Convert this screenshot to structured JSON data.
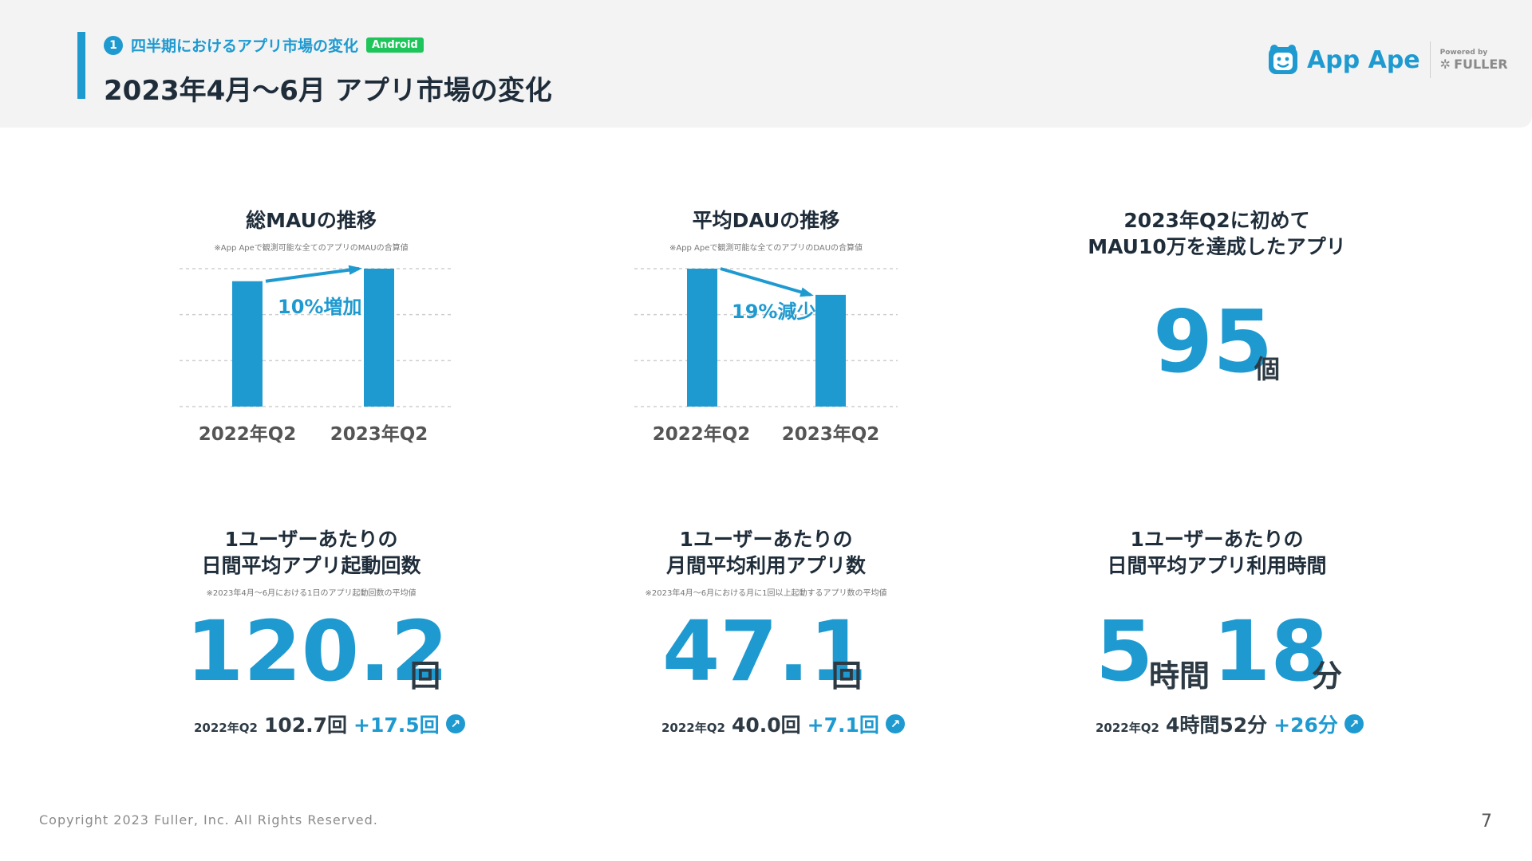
{
  "header": {
    "section_number": "1",
    "eyebrow": "四半期におけるアプリ市場の変化",
    "platform_badge": "Android",
    "title": "2023年4月〜6月 アプリ市場の変化"
  },
  "logo": {
    "name": "App Ape",
    "powered_by": "Powered by",
    "company": "FULLER"
  },
  "mau_chart": {
    "title": "総MAUの推移",
    "note": "※App Apeで観測可能な全てのアプリのMAUの合算値",
    "change_label": "10%増加"
  },
  "dau_chart": {
    "title": "平均DAUの推移",
    "note": "※App Apeで観測可能な全てのアプリのDAUの合算値",
    "change_label": "19%減少"
  },
  "chart_data": [
    {
      "type": "bar",
      "title": "総MAUの推移",
      "categories": [
        "2022年Q2",
        "2023年Q2"
      ],
      "values": [
        90.9,
        100
      ],
      "ylim": [
        0,
        100
      ],
      "grid": true,
      "annotation": "10%増加",
      "color": "#1e9ad1"
    },
    {
      "type": "bar",
      "title": "平均DAUの推移",
      "categories": [
        "2022年Q2",
        "2023年Q2"
      ],
      "values": [
        100,
        81
      ],
      "ylim": [
        0,
        100
      ],
      "grid": true,
      "annotation": "19%減少",
      "color": "#1e9ad1"
    }
  ],
  "new_apps": {
    "title_line1": "2023年Q2に初めて",
    "title_line2": "MAU10万を達成したアプリ",
    "value": "95",
    "unit": "個"
  },
  "daily_launches": {
    "title_line1": "1ユーザーあたりの",
    "title_line2": "日間平均アプリ起動回数",
    "note": "※2023年4月〜6月における1日のアプリ起動回数の平均値",
    "value": "120.2",
    "unit": "回",
    "prev_label": "2022年Q2",
    "prev_value": "102.7回",
    "delta": "+17.5回"
  },
  "monthly_apps": {
    "title_line1": "1ユーザーあたりの",
    "title_line2": "月間平均利用アプリ数",
    "note": "※2023年4月〜6月における月に1回以上起動するアプリ数の平均値",
    "value": "47.1",
    "unit": "回",
    "prev_label": "2022年Q2",
    "prev_value": "40.0回",
    "delta": "+7.1回"
  },
  "daily_time": {
    "title_line1": "1ユーザーあたりの",
    "title_line2": "日間平均アプリ利用時間",
    "hours": "5",
    "hours_unit": "時間",
    "minutes": "18",
    "minutes_unit": "分",
    "prev_label": "2022年Q2",
    "prev_value": "4時間52分",
    "delta": "+26分"
  },
  "footer": {
    "copyright": "Copyright 2023 Fuller, Inc. All Rights Reserved.",
    "page": "7"
  },
  "colors": {
    "accent": "#1e9ad1",
    "badge_green": "#1ec55a",
    "header_bg": "#f3f3f3"
  }
}
